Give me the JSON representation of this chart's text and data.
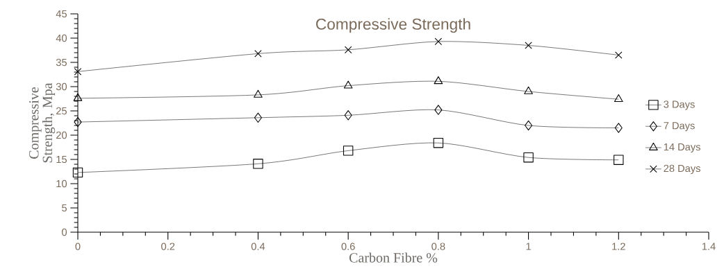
{
  "chart_data": {
    "type": "line",
    "title": "Compressive Strength",
    "xlabel": "Carbon Fibre %",
    "ylabel": "Compressive Strength, Mpa",
    "x": [
      0,
      0.4,
      0.6,
      0.8,
      1,
      1.2
    ],
    "xlim": [
      0,
      1.4
    ],
    "xticks": [
      0,
      0.2,
      0.4,
      0.6,
      0.8,
      1,
      1.2,
      1.4
    ],
    "ylim": [
      0,
      45
    ],
    "yticks": [
      0,
      5,
      10,
      15,
      20,
      25,
      30,
      35,
      40,
      45
    ],
    "grid": false,
    "legend": "right",
    "line_style": "solid",
    "series": [
      {
        "name": "3 Days",
        "color": "#000000",
        "marker": "square",
        "values": [
          12.3,
          14.1,
          16.8,
          18.4,
          15.4,
          14.9
        ]
      },
      {
        "name": "7 Days",
        "color": "#000000",
        "marker": "diamond",
        "values": [
          22.7,
          23.6,
          24.1,
          25.2,
          22.0,
          21.5
        ]
      },
      {
        "name": "14 Days",
        "color": "#000000",
        "marker": "triangle",
        "values": [
          27.6,
          28.3,
          30.2,
          31.1,
          29.0,
          27.4
        ]
      },
      {
        "name": "28 Days",
        "color": "#000000",
        "marker": "cross",
        "values": [
          33.1,
          36.8,
          37.6,
          39.3,
          38.5,
          36.5
        ]
      }
    ]
  }
}
